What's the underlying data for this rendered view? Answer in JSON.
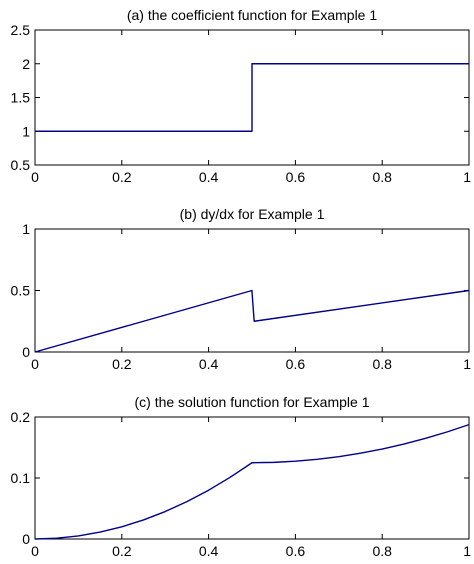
{
  "chart_data": [
    {
      "type": "line",
      "title": "(a) the coefficient function for Example 1",
      "xlim": [
        0,
        1
      ],
      "ylim": [
        0.5,
        2.5
      ],
      "xticks": [
        "0",
        "0.2",
        "0.4",
        "0.6",
        "0.8",
        "1"
      ],
      "yticks": [
        "0.5",
        "1",
        "1.5",
        "2",
        "2.5"
      ],
      "grid": false,
      "series": [
        {
          "x": [
            0,
            0.5,
            0.5,
            1
          ],
          "y": [
            1,
            1,
            2,
            2
          ]
        }
      ]
    },
    {
      "type": "line",
      "title": "(b) dy/dx for Example 1",
      "xlim": [
        0,
        1
      ],
      "ylim": [
        0,
        1
      ],
      "xticks": [
        "0",
        "0.2",
        "0.4",
        "0.6",
        "0.8",
        "1"
      ],
      "yticks": [
        "0",
        "0.5",
        "1"
      ],
      "grid": false,
      "series": [
        {
          "x": [
            0,
            0.5,
            0.5,
            0.505,
            1
          ],
          "y": [
            0,
            0.5,
            0.49,
            0.25,
            0.5
          ]
        }
      ]
    },
    {
      "type": "line",
      "title": "(c) the solution function for Example 1",
      "xlim": [
        0,
        1
      ],
      "ylim": [
        0,
        0.2
      ],
      "xticks": [
        "0",
        "0.2",
        "0.4",
        "0.6",
        "0.8",
        "1"
      ],
      "yticks": [
        "0",
        "0.1",
        "0.2"
      ],
      "grid": false,
      "series": [
        {
          "x": [
            0,
            0.05,
            0.1,
            0.15,
            0.2,
            0.25,
            0.3,
            0.35,
            0.4,
            0.45,
            0.5,
            0.55,
            0.6,
            0.65,
            0.7,
            0.75,
            0.8,
            0.85,
            0.9,
            0.95,
            1
          ],
          "y": [
            0,
            0.0013,
            0.005,
            0.0113,
            0.02,
            0.0313,
            0.045,
            0.0613,
            0.08,
            0.1013,
            0.125,
            0.1256,
            0.1275,
            0.1306,
            0.135,
            0.1406,
            0.1475,
            0.1556,
            0.165,
            0.1756,
            0.1875
          ]
        }
      ]
    }
  ],
  "colors": {
    "line": "#00008b",
    "axes": "#000000"
  }
}
